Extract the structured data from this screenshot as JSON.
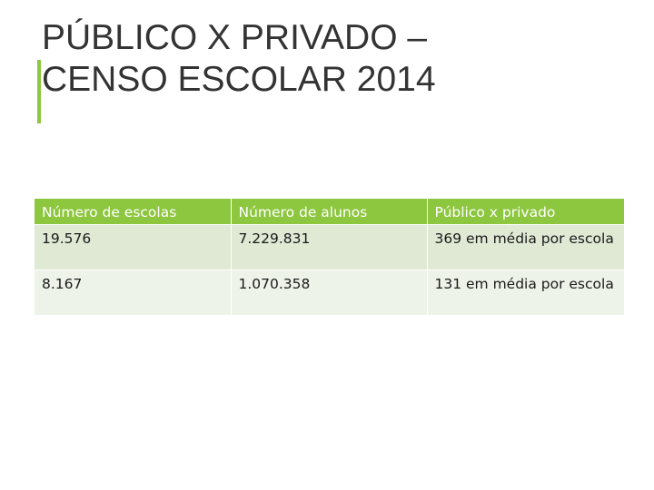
{
  "slide": {
    "title_lines": [
      "PÚBLICO X PRIVADO –",
      "CENSO ESCOLAR 2014"
    ],
    "colors": {
      "accent": "#8dc63f",
      "row_a": "#dfe9d4",
      "row_b": "#eef3e9",
      "title": "#333333"
    }
  },
  "table": {
    "headers": [
      "Número de escolas",
      "Número de alunos",
      "Público x privado"
    ],
    "rows": [
      [
        "19.576",
        "7.229.831",
        "369 em média por escola"
      ],
      [
        "8.167",
        "1.070.358",
        "131 em média por escola"
      ]
    ]
  }
}
